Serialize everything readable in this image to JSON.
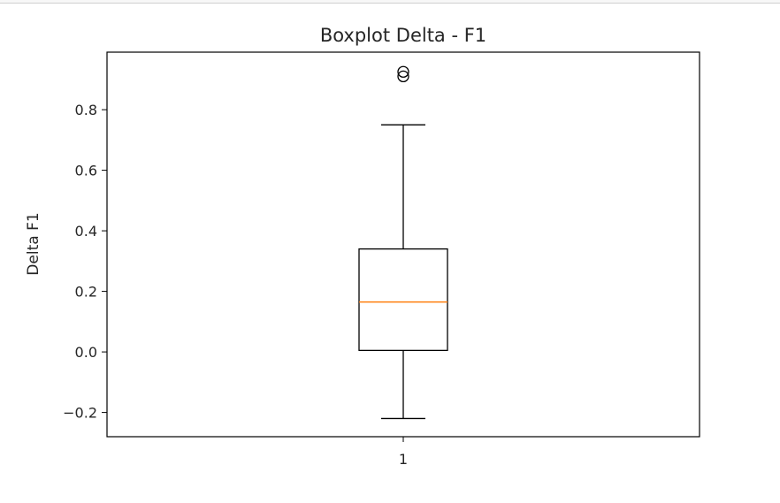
{
  "chart_data": {
    "type": "boxplot",
    "title": "Boxplot Delta - F1",
    "xlabel": "",
    "ylabel": "Delta F1",
    "categories": [
      "1"
    ],
    "boxes": [
      {
        "category": "1",
        "whisker_low": -0.22,
        "q1": 0.005,
        "median": 0.165,
        "q3": 0.34,
        "whisker_high": 0.75,
        "outliers": [
          0.925,
          0.91
        ]
      }
    ],
    "ylim": [
      -0.28,
      0.99
    ],
    "yticks": [
      -0.2,
      0.0,
      0.2,
      0.4,
      0.6,
      0.8
    ],
    "ytick_labels": [
      "−0.2",
      "0.0",
      "0.2",
      "0.4",
      "0.6",
      "0.8"
    ],
    "grid": false,
    "colors": {
      "box": "#000000",
      "median": "#ff7f0e",
      "outlier": "#000000"
    }
  }
}
